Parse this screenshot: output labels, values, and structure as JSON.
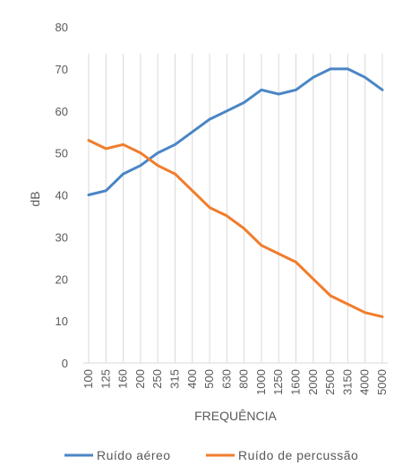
{
  "chart_data": {
    "type": "line",
    "xlabel": "FREQUÊNCIA",
    "ylabel": "dB",
    "ylim": [
      0,
      80
    ],
    "yticks": [
      0,
      10,
      20,
      30,
      40,
      50,
      60,
      70,
      80
    ],
    "grid": "vertical",
    "legend_position": "bottom",
    "categories": [
      "100",
      "125",
      "160",
      "200",
      "250",
      "315",
      "400",
      "500",
      "630",
      "800",
      "1000",
      "1250",
      "1600",
      "2000",
      "2500",
      "3150",
      "4000",
      "5000"
    ],
    "series": [
      {
        "name": "Ruído aéreo",
        "color": "#4A86C5",
        "values": [
          40,
          41,
          45,
          47,
          50,
          52,
          55,
          58,
          60,
          62,
          65,
          64,
          65,
          68,
          70,
          70,
          68,
          65
        ]
      },
      {
        "name": "Ruído de percussão",
        "color": "#F07D2C",
        "values": [
          53,
          51,
          52,
          50,
          47,
          45,
          41,
          37,
          35,
          32,
          28,
          26,
          24,
          20,
          16,
          14,
          12,
          11
        ]
      }
    ]
  }
}
